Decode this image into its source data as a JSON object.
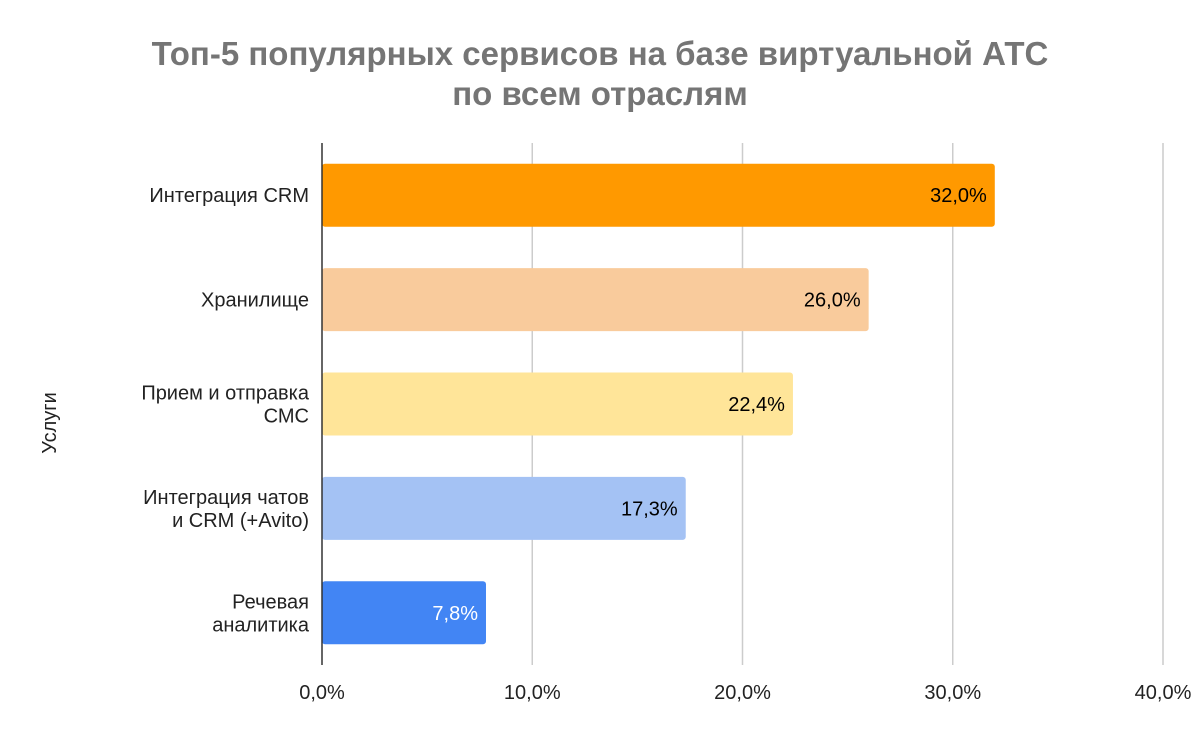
{
  "chart_data": {
    "type": "bar",
    "orientation": "horizontal",
    "title_lines": [
      "Топ-5 популярных сервисов на базе виртуальной АТС",
      "по всем отраслям"
    ],
    "xlabel": "",
    "ylabel": "Услуги",
    "categories": [
      [
        "Интеграция CRM"
      ],
      [
        "Хранилище"
      ],
      [
        "Прием и отправка",
        "СМС"
      ],
      [
        "Интеграция чатов",
        "и CRM (+Avito)"
      ],
      [
        "Речевая",
        "аналитика"
      ]
    ],
    "values": [
      32.0,
      26.0,
      22.4,
      17.3,
      7.8
    ],
    "data_labels": [
      "32,0%",
      "26,0%",
      "22,4%",
      "17,3%",
      "7,8%"
    ],
    "colors": [
      "#ff9900",
      "#f9cb9c",
      "#ffe599",
      "#a4c2f4",
      "#4285f4"
    ],
    "label_colors": [
      "#000000",
      "#000000",
      "#000000",
      "#000000",
      "#ffffff"
    ],
    "xlim": [
      0,
      40
    ],
    "xticks": [
      0,
      10,
      20,
      30,
      40
    ],
    "xtick_labels": [
      "0,0%",
      "10,0%",
      "20,0%",
      "30,0%",
      "40,0%"
    ],
    "grid": true,
    "legend": "none"
  }
}
